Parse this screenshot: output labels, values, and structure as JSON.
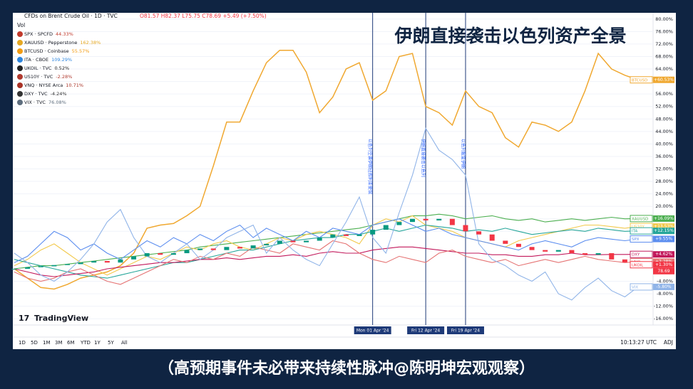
{
  "chart_data": {
    "type": "line",
    "title": "伊朗直接袭击以色列资产全景",
    "symbol_header": "CFDs on Brent Crude Oil · 1D · TVC",
    "ohlc": "O81.57 H82.37 L75.75 C78.69 +5.49 (+7.50%)",
    "volume_label": "Vol",
    "legend": [
      {
        "symbol": "SPX · SPCFD",
        "change": "44.33%",
        "color": "#c0392b"
      },
      {
        "symbol": "XAUUSD · Pepperstone",
        "change": "162.38%",
        "color": "#e5a823"
      },
      {
        "symbol": "BTCUSD · Coinbase",
        "change": "55.57%",
        "color": "#f39c12"
      },
      {
        "symbol": "ITA · CBOE",
        "change": "109.29%",
        "color": "#2e86de"
      },
      {
        "symbol": "UKOIL · TVC",
        "change": "0.52%",
        "color": "#222222"
      },
      {
        "symbol": "US10Y · TVC",
        "change": "-2.28%",
        "color": "#b03a2e"
      },
      {
        "symbol": "VNQ · NYSE Arca",
        "change": "10.71%",
        "color": "#a93226"
      },
      {
        "symbol": "DXY · TVC",
        "change": "-4.24%",
        "color": "#333333"
      },
      {
        "symbol": "VIX · TVC",
        "change": "76.08%",
        "color": "#5d6d7e"
      }
    ],
    "categories": [
      null,
      null,
      null,
      null,
      null,
      null,
      null,
      null,
      null,
      null,
      null,
      null,
      null,
      null,
      null,
      null,
      null,
      null,
      null,
      null,
      null,
      null,
      null,
      null,
      null,
      null,
      null,
      "Mon 01 Apr '24",
      null,
      null,
      null,
      "Fri 12 Apr '24",
      null,
      null,
      "Fri 19 Apr '24",
      null,
      null,
      null,
      null,
      null,
      null,
      null,
      null,
      null,
      null,
      null,
      null,
      null
    ],
    "event_notes": [
      "以色列空袭伊朗驻叙利亚使馆",
      "伊朗直接袭击以色列",
      "以色列报复伊朗"
    ],
    "ylim": [
      -18,
      82
    ],
    "yticks": [
      {
        "value": 80,
        "label": "80.00%"
      },
      {
        "value": 76,
        "label": "76.00%"
      },
      {
        "value": 72,
        "label": "72.00%"
      },
      {
        "value": 68,
        "label": "68.00%"
      },
      {
        "value": 64,
        "label": "64.00%"
      },
      {
        "value": 60,
        "label": "60.00%"
      },
      {
        "value": 56,
        "label": "56.00%"
      },
      {
        "value": 52,
        "label": "52.00%"
      },
      {
        "value": 48,
        "label": "48.00%"
      },
      {
        "value": 44,
        "label": "44.00%"
      },
      {
        "value": 40,
        "label": "40.00%"
      },
      {
        "value": 36,
        "label": "36.00%"
      },
      {
        "value": 32,
        "label": "32.00%"
      },
      {
        "value": 28,
        "label": "28.00%"
      },
      {
        "value": 24,
        "label": "24.00%"
      },
      {
        "value": 20,
        "label": "20.00%"
      },
      {
        "value": 16,
        "label": "16.00%"
      },
      {
        "value": 12,
        "label": "12.00%"
      },
      {
        "value": -4,
        "label": "-4.00%"
      },
      {
        "value": -8,
        "label": "-8.00%"
      },
      {
        "value": -12,
        "label": "-12.00%"
      },
      {
        "value": -16,
        "label": "-16.00%"
      }
    ],
    "grid": true,
    "series": [
      {
        "name": "BTCUSD",
        "color": "#f0a830",
        "tag": "+60.53%",
        "values": [
          0,
          -3,
          -6,
          -6.5,
          -5,
          -3,
          -2,
          -1,
          1,
          5,
          13,
          14,
          14.5,
          17,
          20,
          33,
          47,
          47,
          57,
          66,
          70,
          70,
          63,
          50,
          55,
          64,
          66,
          54,
          57,
          68,
          69,
          52,
          50,
          46,
          57,
          52,
          50,
          42,
          39,
          47,
          46,
          44,
          47,
          57,
          69,
          64,
          62,
          60.53
        ]
      },
      {
        "name": "XAUUSD",
        "color": "#4caf50",
        "tag": "+16.09%",
        "values": [
          0,
          0.5,
          1,
          1,
          1.5,
          2,
          2.5,
          3,
          3.5,
          4,
          4.5,
          5,
          5.5,
          6,
          7,
          7.5,
          8,
          8.5,
          9,
          9.5,
          10,
          10.5,
          11,
          11.5,
          12,
          12.5,
          13,
          14,
          15,
          16,
          17,
          17,
          17.5,
          17,
          16,
          16.5,
          17,
          16,
          15.5,
          16,
          15,
          15.5,
          16,
          15.5,
          16,
          16.5,
          16,
          16.09
        ]
      },
      {
        "name": "US10Y",
        "color": "#f2c94c",
        "tag": "+13.53%",
        "values": [
          1,
          3,
          6,
          8,
          5,
          2,
          0,
          -2,
          0,
          2,
          4,
          3,
          5,
          7,
          6,
          8,
          9,
          7,
          6,
          8,
          10,
          9,
          11,
          12,
          11,
          10,
          8,
          14,
          16,
          15,
          17,
          14,
          13,
          12,
          10,
          9,
          8,
          7,
          9,
          10,
          11,
          12,
          13,
          14,
          14,
          13.5,
          13,
          13.53
        ]
      },
      {
        "name": "ITA",
        "color": "#26a69a",
        "tag": "+12.15%",
        "values": [
          3,
          2,
          1,
          0,
          -1,
          -2,
          -2.5,
          -3,
          -2,
          -1,
          0,
          1,
          2,
          2,
          3,
          4,
          5,
          6,
          6,
          7,
          8,
          9,
          9.5,
          10,
          10,
          11,
          11,
          12,
          13,
          12,
          13,
          14,
          13.5,
          13,
          12,
          12.5,
          12,
          13,
          12,
          11,
          11.5,
          12,
          12.5,
          12,
          13,
          12.5,
          12,
          12.15
        ]
      },
      {
        "name": "SPX",
        "color": "#5b8def",
        "tag": "+9.55%",
        "values": [
          2,
          4,
          8,
          12,
          10,
          6,
          8,
          5,
          3,
          6,
          9,
          7,
          10,
          8,
          11,
          9,
          12,
          14,
          10,
          13,
          11,
          9,
          12,
          10,
          13,
          12,
          11,
          14,
          15,
          16,
          14,
          12,
          13,
          11,
          10,
          9,
          8,
          7,
          6,
          8,
          9,
          8,
          7,
          9,
          10,
          9.5,
          9,
          9.55
        ]
      },
      {
        "name": "DXY",
        "color": "#c2185b",
        "tag": "+4.62%",
        "values": [
          0,
          -1,
          -2,
          -2.5,
          -2,
          -1.5,
          -1,
          0,
          0.5,
          1,
          1.5,
          2,
          2,
          2.5,
          3,
          3,
          3.5,
          3,
          3.5,
          4,
          4,
          4.5,
          4,
          5,
          5.5,
          5,
          5,
          6,
          6.5,
          7,
          7,
          6.5,
          6,
          5.5,
          5,
          5,
          4.5,
          4.5,
          4,
          4,
          4.5,
          4.5,
          5,
          4.5,
          4.5,
          4.6,
          4.6,
          4.62
        ]
      },
      {
        "name": "VNQ",
        "color": "#e57373",
        "tag": "+2.28%",
        "values": [
          -1,
          -3,
          -4,
          -3,
          -1,
          0,
          -2,
          -4,
          -5,
          -3,
          -1,
          1,
          3,
          2,
          4,
          3,
          5,
          4,
          7,
          6,
          5,
          8,
          7,
          6,
          9,
          8,
          5,
          3,
          2,
          4,
          3,
          2,
          5,
          6,
          4,
          3,
          2,
          3,
          1,
          2,
          3,
          2,
          3,
          4,
          3,
          2.5,
          2,
          2.28
        ]
      },
      {
        "name": "VIX",
        "color": "#90b4e8",
        "tag": "-5.80%",
        "values": [
          5,
          2,
          -2,
          -4,
          -1,
          3,
          8,
          15,
          19,
          10,
          4,
          2,
          5,
          8,
          3,
          6,
          10,
          12,
          14,
          5,
          10,
          6,
          3,
          1,
          8,
          15,
          23,
          10,
          5,
          18,
          30,
          45,
          38,
          35,
          30,
          8,
          3,
          1,
          -2,
          -4,
          -1,
          -8,
          -10,
          -6,
          -3,
          -7,
          -9,
          -5.8
        ]
      },
      {
        "name": "UKOIL",
        "type": "candle",
        "color": "#f23645",
        "up_color": "#089981",
        "tag": "+1.30%",
        "price_tag": "78.69",
        "values": [
          0,
          0.5,
          0.8,
          1.2,
          1.5,
          2,
          2.5,
          2,
          3,
          4,
          5,
          4.5,
          5,
          6,
          6.5,
          6,
          7,
          6.5,
          7.5,
          8,
          9,
          8.5,
          9,
          10,
          11,
          10.5,
          11,
          12.5,
          14,
          15,
          16,
          15.5,
          16,
          14,
          12,
          11,
          9,
          8,
          7,
          6,
          5.5,
          6,
          5,
          4.5,
          5,
          3,
          2,
          1.3
        ]
      }
    ]
  },
  "ui": {
    "logo": "TradingView",
    "ranges": [
      "1D",
      "5D",
      "1M",
      "3M",
      "6M",
      "YTD",
      "1Y",
      "5Y",
      "All"
    ],
    "clock": "10:13:27 UTC",
    "adj": "ADJ",
    "caption": "（高预期事件未必带来持续性脉冲@陈明坤宏观观察）"
  }
}
